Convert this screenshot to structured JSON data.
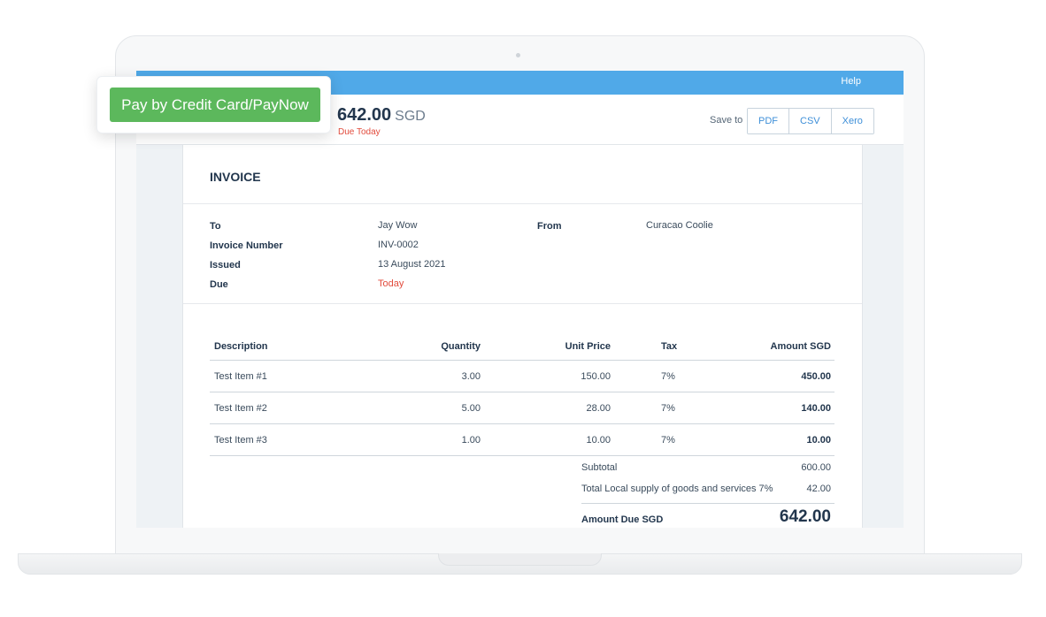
{
  "topbar": {
    "help_label": "Help"
  },
  "header": {
    "amount": "642.00",
    "currency": "SGD",
    "due_status": "Due Today",
    "save_to_label": "Save to",
    "save_options": [
      "PDF",
      "CSV",
      "Xero"
    ]
  },
  "pay_button_label": "Pay by Credit Card/PayNow",
  "invoice": {
    "title": "INVOICE",
    "meta": [
      {
        "label": "To",
        "value": "Jay Wow"
      },
      {
        "label": "Invoice Number",
        "value": "INV-0002"
      },
      {
        "label": "Issued",
        "value": "13 August 2021"
      },
      {
        "label": "Due",
        "value": "Today"
      }
    ],
    "from_label": "From",
    "from_value": "Curacao Coolie",
    "columns": [
      "Description",
      "Quantity",
      "Unit Price",
      "Tax",
      "Amount SGD"
    ],
    "items": [
      {
        "description": "Test Item #1",
        "quantity": "3.00",
        "unit_price": "150.00",
        "tax": "7%",
        "amount": "450.00"
      },
      {
        "description": "Test Item #2",
        "quantity": "5.00",
        "unit_price": "28.00",
        "tax": "7%",
        "amount": "140.00"
      },
      {
        "description": "Test Item #3",
        "quantity": "1.00",
        "unit_price": "10.00",
        "tax": "7%",
        "amount": "10.00"
      }
    ],
    "subtotal_label": "Subtotal",
    "subtotal_value": "600.00",
    "tax_total_label": "Total Local supply of goods and services 7%",
    "tax_total_value": "42.00",
    "amount_due_label": "Amount Due SGD",
    "amount_due_value": "642.00"
  },
  "colors": {
    "topbar": "#50a9e8",
    "pay_button": "#5cb85c",
    "due_red": "#e24b3c",
    "link_blue": "#3e8fd8"
  }
}
